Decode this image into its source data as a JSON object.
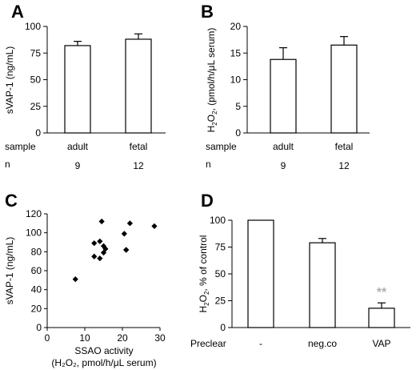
{
  "chart_data": [
    {
      "panel": "A",
      "type": "bar",
      "categories": [
        "adult",
        "fetal"
      ],
      "values": [
        82,
        88
      ],
      "errors": [
        4,
        5
      ],
      "ylabel": "sVAP-1 (ng/mL)",
      "ylim": [
        0,
        100
      ],
      "yticks": [
        "0",
        "25",
        "50",
        "75",
        "100"
      ],
      "row_labels": [
        "sample",
        "n"
      ],
      "n": [
        "9",
        "12"
      ]
    },
    {
      "panel": "B",
      "type": "bar",
      "categories": [
        "adult",
        "fetal"
      ],
      "values": [
        13.8,
        16.5
      ],
      "errors": [
        2.2,
        1.6
      ],
      "ylabel_main": "H",
      "ylabel_sub1": "2",
      "ylabel_mid": "O",
      "ylabel_sub2": "2",
      "ylabel_tail": ", (pmol/h/μL serum)",
      "ylim": [
        0,
        20
      ],
      "yticks": [
        "0",
        "5",
        "10",
        "15",
        "20"
      ],
      "row_labels": [
        "sample",
        "n"
      ],
      "n": [
        "9",
        "12"
      ]
    },
    {
      "panel": "C",
      "type": "scatter",
      "x": [
        7.5,
        12.5,
        12.5,
        14,
        14,
        14.5,
        15,
        15,
        15.5,
        20.5,
        21,
        21,
        22,
        28.5
      ],
      "y": [
        51,
        89,
        75,
        73,
        91,
        112,
        86,
        79,
        83,
        99,
        82,
        82,
        110,
        107
      ],
      "ylabel": "sVAP-1 (ng/mL)",
      "xlabel_line1": "SSAO activity",
      "xlabel_line2": "(H₂O₂, pmol/h/μL serum)",
      "xlim": [
        0,
        30
      ],
      "ylim": [
        0,
        120
      ],
      "xticks": [
        "0",
        "10",
        "20",
        "30"
      ],
      "yticks": [
        "0",
        "20",
        "40",
        "60",
        "80",
        "100",
        "120"
      ]
    },
    {
      "panel": "D",
      "type": "bar",
      "categories": [
        "-",
        "neg.co",
        "VAP"
      ],
      "values": [
        100,
        79,
        18
      ],
      "errors": [
        0,
        4,
        5
      ],
      "ylabel_main": "H",
      "ylabel_sub1": "2",
      "ylabel_mid": "O",
      "ylabel_sub2": "2",
      "ylabel_tail": ", % of control",
      "ylim": [
        0,
        100
      ],
      "yticks": [
        "0",
        "25",
        "50",
        "75",
        "100"
      ],
      "row_label": "Preclear",
      "annotation": "**",
      "annotation_color": "#b0b0b0"
    }
  ]
}
